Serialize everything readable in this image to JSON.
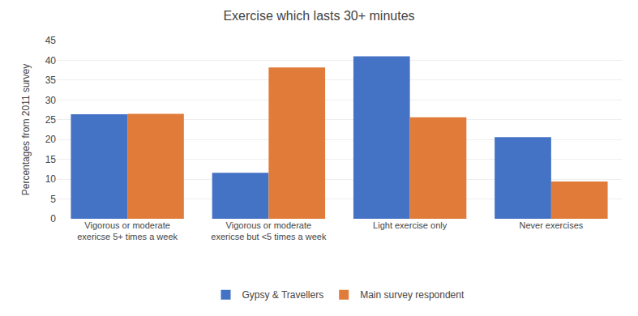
{
  "chart_data": {
    "type": "bar",
    "title": "Exercise which lasts 30+ minutes",
    "ylabel": "Percentages from 2011 survey",
    "categories": [
      "Vigorous or moderate\nexericse 5+ times a week",
      "Vigorous or moderate\nexericse but <5 times a week",
      "Light exercise only",
      "Never exercises"
    ],
    "series": [
      {
        "name": "Gypsy & Travellers",
        "color": "#4472C4",
        "values": [
          26.4,
          11.6,
          41.0,
          20.6
        ]
      },
      {
        "name": "Main survey respondent",
        "color": "#E07B39",
        "values": [
          26.5,
          38.2,
          25.6,
          9.4
        ]
      }
    ],
    "ylim": [
      0,
      45
    ],
    "yticks": [
      0,
      5,
      10,
      15,
      20,
      25,
      30,
      35,
      40,
      45
    ],
    "grid": true,
    "legend": "bottom"
  }
}
